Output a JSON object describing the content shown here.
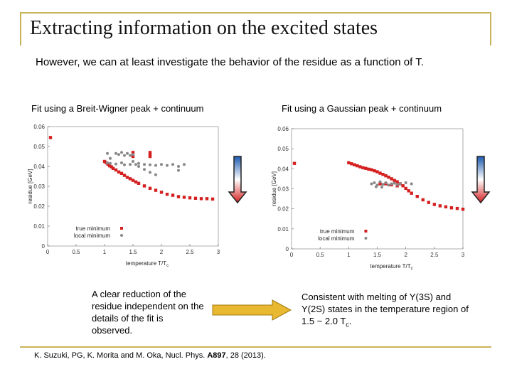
{
  "slide": {
    "title": "Extracting information on the excited states",
    "intro": "However, we can at least investigate the behavior of the residue as a function of T.",
    "left_caption": "Fit using a Breit-Wigner peak + continuum",
    "right_caption": "Fit using a Gaussian peak + continuum",
    "left_note": "A clear reduction of the residue independent on the details of the fit is observed.",
    "right_note_html": "Consistent with melting of Υ(3S) and Υ(2S) states in the temperature region of 1.5 ~ 2.0 T",
    "right_note_sub": "c",
    "right_note_end": ".",
    "reference_pre": "K. Suzuki, PG, K. Morita and M. Oka, Nucl. Phys. ",
    "reference_bold": "A897",
    "reference_post": ", 28 (2013).",
    "colors": {
      "frame": "#c8b45a",
      "red": "#d42020",
      "gray": "#888888",
      "arrow": "#e8b830"
    }
  },
  "chart_data": [
    {
      "type": "scatter",
      "title": "Fit using a Breit-Wigner peak + continuum",
      "xlabel": "temperature T/T",
      "xlabel_sub": "c",
      "ylabel": "residue [GeV]",
      "xlim": [
        0,
        3
      ],
      "ylim": [
        0,
        0.06
      ],
      "xticks": [
        "0",
        "0.5",
        "1",
        "1.5",
        "2",
        "2.5",
        "3"
      ],
      "yticks": [
        "0",
        "0.01",
        "0.02",
        "0.03",
        "0.04",
        "0.05",
        "0.06"
      ],
      "legend": [
        "true minimum",
        "local minimum"
      ],
      "series": [
        {
          "name": "true minimum",
          "color": "#d42020",
          "points": [
            [
              0.05,
              0.0545
            ],
            [
              1.0,
              0.0425
            ],
            [
              1.03,
              0.0418
            ],
            [
              1.06,
              0.041
            ],
            [
              1.09,
              0.0403
            ],
            [
              1.12,
              0.0398
            ],
            [
              1.15,
              0.039
            ],
            [
              1.2,
              0.0382
            ],
            [
              1.25,
              0.0372
            ],
            [
              1.3,
              0.0365
            ],
            [
              1.35,
              0.0355
            ],
            [
              1.4,
              0.0345
            ],
            [
              1.45,
              0.0338
            ],
            [
              1.5,
              0.033
            ],
            [
              1.55,
              0.0322
            ],
            [
              1.6,
              0.0315
            ],
            [
              1.7,
              0.0302
            ],
            [
              1.8,
              0.029
            ],
            [
              1.9,
              0.028
            ],
            [
              2.0,
              0.027
            ],
            [
              2.1,
              0.026
            ],
            [
              2.2,
              0.0255
            ],
            [
              2.3,
              0.0248
            ],
            [
              2.4,
              0.0245
            ],
            [
              2.5,
              0.0242
            ],
            [
              2.6,
              0.024
            ],
            [
              2.7,
              0.0238
            ],
            [
              2.8,
              0.0238
            ],
            [
              2.9,
              0.0236
            ],
            [
              1.5,
              0.047
            ],
            [
              1.5,
              0.045
            ],
            [
              1.8,
              0.047
            ],
            [
              1.8,
              0.046
            ],
            [
              1.8,
              0.045
            ]
          ]
        },
        {
          "name": "local minimum",
          "color": "#888888",
          "points": [
            [
              1.05,
              0.0465
            ],
            [
              1.1,
              0.044
            ],
            [
              1.2,
              0.0465
            ],
            [
              1.25,
              0.046
            ],
            [
              1.3,
              0.047
            ],
            [
              1.35,
              0.0455
            ],
            [
              1.4,
              0.0465
            ],
            [
              1.45,
              0.0455
            ],
            [
              1.5,
              0.046
            ],
            [
              1.5,
              0.0425
            ],
            [
              1.55,
              0.041
            ],
            [
              1.6,
              0.04
            ],
            [
              1.7,
              0.0385
            ],
            [
              1.8,
              0.037
            ],
            [
              1.9,
              0.0358
            ],
            [
              1.05,
              0.0418
            ],
            [
              1.1,
              0.0415
            ],
            [
              1.2,
              0.0412
            ],
            [
              1.3,
              0.0418
            ],
            [
              1.35,
              0.0408
            ],
            [
              1.45,
              0.041
            ],
            [
              1.6,
              0.0415
            ],
            [
              1.7,
              0.041
            ],
            [
              1.8,
              0.0408
            ],
            [
              1.9,
              0.0405
            ],
            [
              2.0,
              0.041
            ],
            [
              2.1,
              0.0405
            ],
            [
              2.2,
              0.041
            ],
            [
              2.3,
              0.04
            ],
            [
              2.4,
              0.041
            ],
            [
              2.3,
              0.038
            ]
          ]
        }
      ]
    },
    {
      "type": "scatter",
      "title": "Fit using a Gaussian peak + continuum",
      "xlabel": "temperature T/T",
      "xlabel_sub": "c",
      "ylabel": "residue [GeV]",
      "xlim": [
        0,
        3
      ],
      "ylim": [
        0,
        0.06
      ],
      "xticks": [
        "0",
        "0.5",
        "1",
        "1.5",
        "2",
        "2.5",
        "3"
      ],
      "yticks": [
        "0",
        "0.01",
        "0.02",
        "0.03",
        "0.04",
        "0.05",
        "0.06"
      ],
      "legend": [
        "true minimum",
        "local minimum"
      ],
      "series": [
        {
          "name": "true minimum",
          "color": "#d42020",
          "points": [
            [
              0.05,
              0.0427
            ],
            [
              1.0,
              0.043
            ],
            [
              1.05,
              0.0425
            ],
            [
              1.1,
              0.042
            ],
            [
              1.15,
              0.0415
            ],
            [
              1.2,
              0.041
            ],
            [
              1.25,
              0.0405
            ],
            [
              1.3,
              0.0402
            ],
            [
              1.35,
              0.0398
            ],
            [
              1.4,
              0.0395
            ],
            [
              1.45,
              0.039
            ],
            [
              1.5,
              0.0385
            ],
            [
              1.55,
              0.0378
            ],
            [
              1.6,
              0.0372
            ],
            [
              1.65,
              0.0365
            ],
            [
              1.7,
              0.0358
            ],
            [
              1.75,
              0.035
            ],
            [
              1.8,
              0.0342
            ],
            [
              1.85,
              0.0335
            ],
            [
              1.9,
              0.0325
            ],
            [
              1.95,
              0.0315
            ],
            [
              2.0,
              0.0302
            ],
            [
              2.05,
              0.029
            ],
            [
              2.1,
              0.0278
            ],
            [
              2.2,
              0.0262
            ],
            [
              2.3,
              0.0245
            ],
            [
              2.4,
              0.0232
            ],
            [
              2.5,
              0.0222
            ],
            [
              2.6,
              0.0215
            ],
            [
              2.7,
              0.021
            ],
            [
              2.8,
              0.0205
            ],
            [
              2.9,
              0.0202
            ],
            [
              3.0,
              0.0198
            ],
            [
              1.55,
              0.0325
            ],
            [
              1.65,
              0.0325
            ],
            [
              1.75,
              0.032
            ],
            [
              1.85,
              0.0315
            ]
          ]
        },
        {
          "name": "local minimum",
          "color": "#888888",
          "points": [
            [
              1.4,
              0.0325
            ],
            [
              1.45,
              0.033
            ],
            [
              1.5,
              0.0318
            ],
            [
              1.55,
              0.0335
            ],
            [
              1.6,
              0.0322
            ],
            [
              1.65,
              0.033
            ],
            [
              1.7,
              0.0318
            ],
            [
              1.75,
              0.0325
            ],
            [
              1.8,
              0.0328
            ],
            [
              1.85,
              0.032
            ],
            [
              1.9,
              0.0325
            ],
            [
              2.0,
              0.033
            ],
            [
              2.1,
              0.0325
            ],
            [
              1.48,
              0.031
            ],
            [
              1.58,
              0.0308
            ]
          ]
        }
      ]
    }
  ]
}
